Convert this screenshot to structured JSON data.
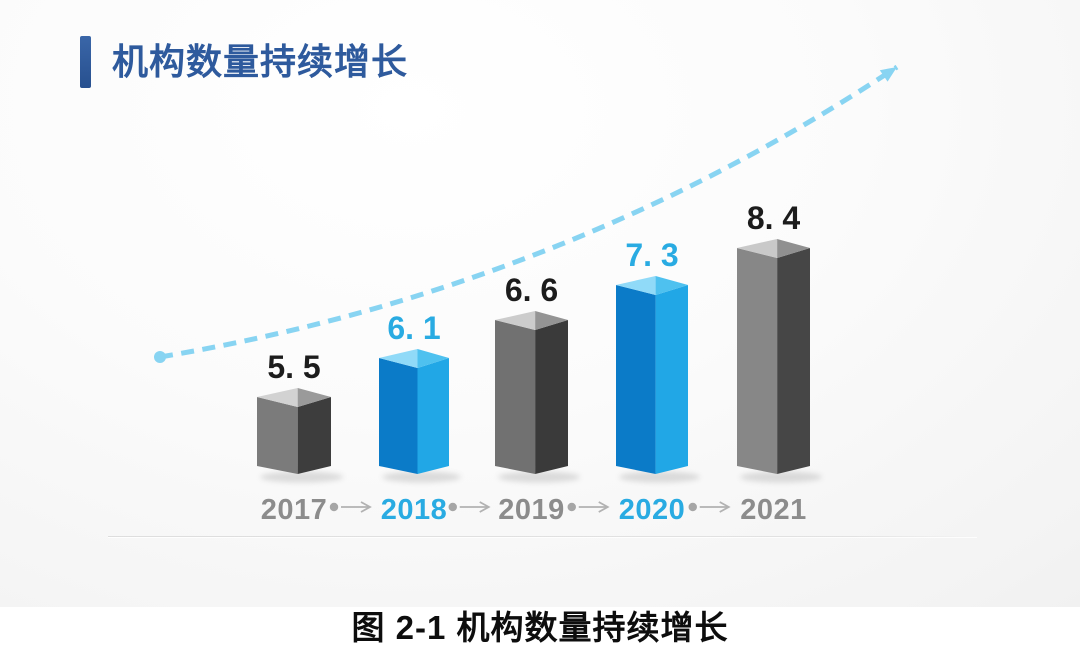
{
  "header": {
    "title": "机构数量持续增长",
    "accent_color": "#2E5A9D"
  },
  "caption": {
    "text": "图 2-1 机构数量持续增长"
  },
  "chart_data": {
    "type": "bar",
    "style": "3d-column",
    "title": "机构数量持续增长",
    "categories": [
      "2017",
      "2018",
      "2019",
      "2020",
      "2021"
    ],
    "values": [
      5.5,
      6.1,
      6.6,
      7.3,
      8.4
    ],
    "xlabel": "",
    "ylabel": "",
    "grid": false,
    "legend": false,
    "bars": [
      {
        "category": "2017",
        "value": 5.5,
        "label": "5. 5",
        "label_color": "#1c1c1c",
        "category_color": "#8c8c8c",
        "face_left": "#7b7b7b",
        "face_right": "#3d3d3d",
        "top_left": "#d2d2d2",
        "top_right": "#9a9a9a"
      },
      {
        "category": "2018",
        "value": 6.1,
        "label": "6. 1",
        "label_color": "#29abe2",
        "category_color": "#29abe2",
        "face_left": "#0b7bc8",
        "face_right": "#21a7e6",
        "top_left": "#90daf8",
        "top_right": "#4ec1ef"
      },
      {
        "category": "2019",
        "value": 6.6,
        "label": "6. 6",
        "label_color": "#1c1c1c",
        "category_color": "#8c8c8c",
        "face_left": "#717171",
        "face_right": "#3a3a3a",
        "top_left": "#cccccc",
        "top_right": "#949494"
      },
      {
        "category": "2020",
        "value": 7.3,
        "label": "7. 3",
        "label_color": "#29abe2",
        "category_color": "#29abe2",
        "face_left": "#0b7bc8",
        "face_right": "#21a7e6",
        "top_left": "#90daf8",
        "top_right": "#4ec1ef"
      },
      {
        "category": "2021",
        "value": 8.4,
        "label": "8. 4",
        "label_color": "#1c1c1c",
        "category_color": "#8c8c8c",
        "face_left": "#878787",
        "face_right": "#464646",
        "top_left": "#c9c9c9",
        "top_right": "#909090"
      }
    ],
    "trend_arrow": {
      "style": "dashed",
      "direction": "up-right",
      "color": "#88d4f2"
    },
    "axis_connector_color": "#b2b2b2"
  }
}
